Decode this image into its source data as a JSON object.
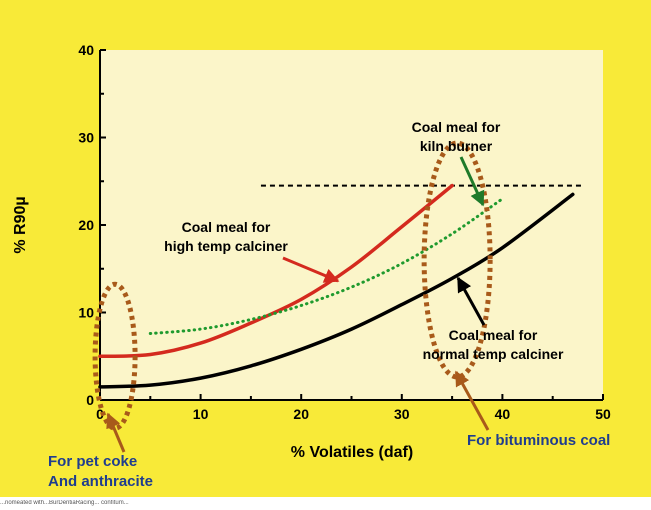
{
  "chart_data": {
    "type": "line",
    "xlabel": "% Volatiles (daf)",
    "ylabel": "% R90µ",
    "xlim": [
      0,
      50
    ],
    "ylim": [
      0,
      40
    ],
    "x_ticks": [
      "0",
      "10",
      "20",
      "30",
      "40",
      "50"
    ],
    "y_ticks": [
      "0",
      "10",
      "20",
      "30",
      "40"
    ],
    "grid": false,
    "series": [
      {
        "name": "Coal meal for high temp calciner",
        "color": "#d42a1e",
        "style": "solid",
        "x": [
          0,
          5,
          10,
          15,
          20,
          25,
          30,
          35
        ],
        "y": [
          5,
          5.2,
          6.5,
          8.8,
          11.5,
          15.2,
          19.8,
          24.5
        ]
      },
      {
        "name": "Coal meal for kiln burner",
        "color": "#1f9a2e",
        "style": "dotted",
        "x": [
          5,
          10,
          15,
          20,
          25,
          30,
          35,
          40
        ],
        "y": [
          7.6,
          8.1,
          9.2,
          10.8,
          12.9,
          15.6,
          19,
          23
        ]
      },
      {
        "name": "Coal meal for normal temp calciner",
        "color": "#000000",
        "style": "solid",
        "x": [
          0,
          5,
          10,
          15,
          20,
          25,
          30,
          35,
          40,
          47
        ],
        "y": [
          1.5,
          1.7,
          2.5,
          3.9,
          5.8,
          8.1,
          10.9,
          13.9,
          17.4,
          23.5
        ]
      }
    ],
    "reference_line": {
      "y": 24.5,
      "x_from": 16,
      "x_to": 48,
      "style": "dashed"
    },
    "annotations": [
      {
        "lines": [
          "Coal meal for",
          "high temp calciner"
        ],
        "color": "#000000"
      },
      {
        "lines": [
          "Coal meal for",
          "kiln burner"
        ],
        "color": "#000000"
      },
      {
        "lines": [
          "Coal meal for",
          "normal temp calciner"
        ],
        "color": "#000000"
      },
      {
        "lines": [
          "For bituminous coal"
        ],
        "color": "#1f3d8f"
      },
      {
        "lines": [
          "For pet coke",
          "And anthracite"
        ],
        "color": "#1f3d8f"
      }
    ]
  },
  "colors": {
    "background": "#f8ea38",
    "plot_area": "#fbf5c9",
    "highlight_ellipse": "#a85a1a",
    "annotation_blue": "#1f3d8f"
  },
  "footer_text": "...nomeated with...BurDentiaRacing... confitum..."
}
